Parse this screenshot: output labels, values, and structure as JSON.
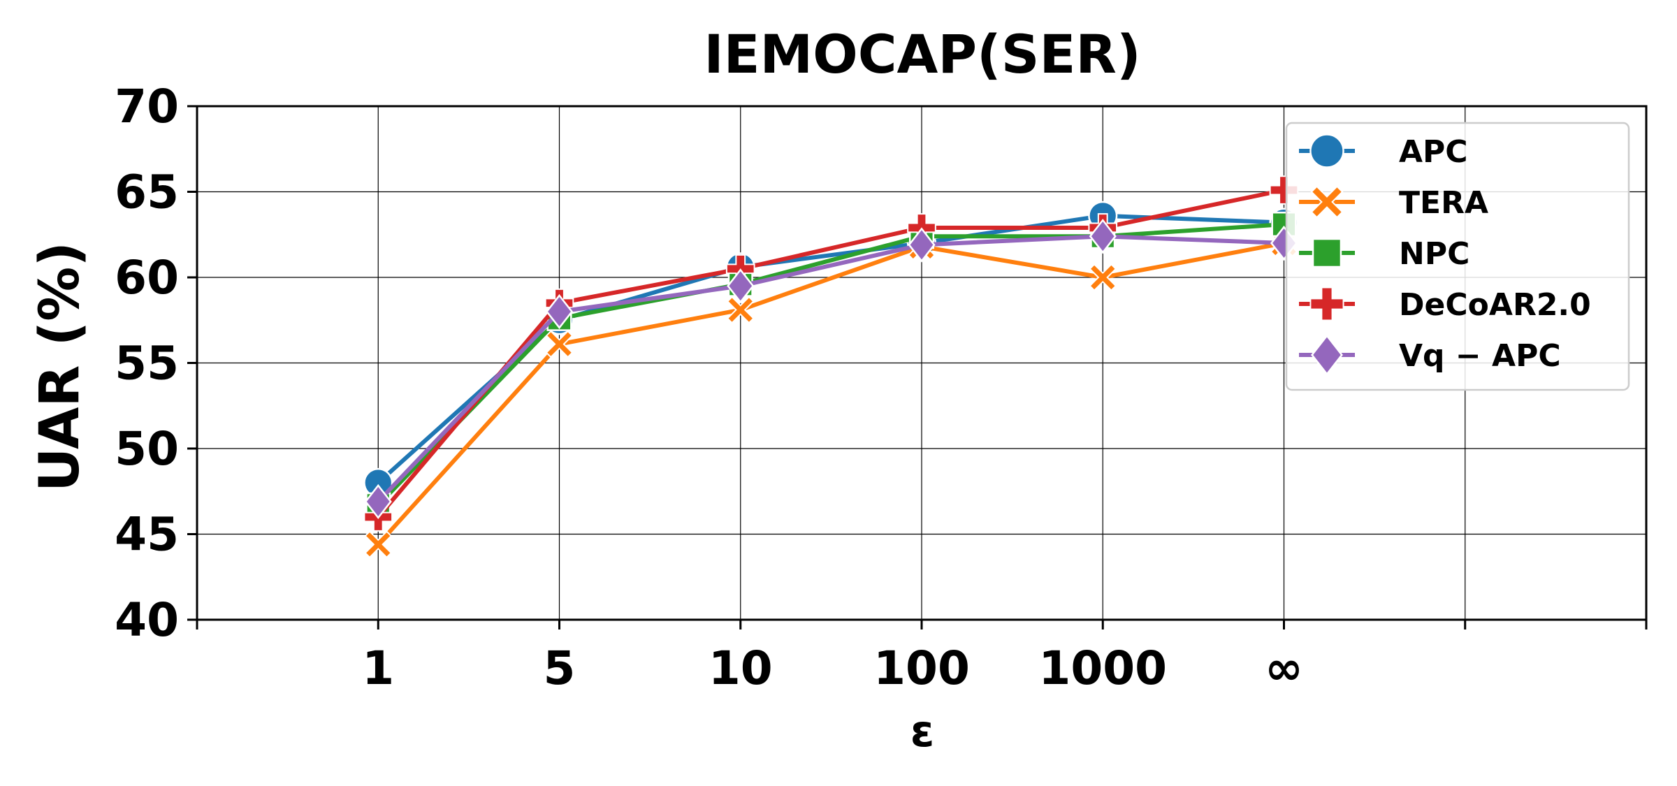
{
  "chart_data": {
    "type": "line",
    "title": "IEMOCAP(SER)",
    "xlabel": "ε",
    "ylabel": "UAR (%)",
    "categories": [
      "1",
      "5",
      "10",
      "100",
      "1000",
      "∞"
    ],
    "x_tick_count": 9,
    "y_ticks": [
      "40",
      "45",
      "50",
      "55",
      "60",
      "65",
      "70"
    ],
    "ylim": [
      40,
      70
    ],
    "grid": true,
    "legend_position": "top-right",
    "series": [
      {
        "name": "APC",
        "color": "#1f77b4",
        "marker": "circle",
        "values": [
          48.0,
          57.5,
          60.6,
          62.0,
          63.6,
          63.2
        ]
      },
      {
        "name": "TERA",
        "color": "#ff7f0e",
        "marker": "x",
        "values": [
          44.4,
          56.1,
          58.1,
          61.8,
          60.0,
          62.0
        ]
      },
      {
        "name": "NPC",
        "color": "#2ca02c",
        "marker": "square",
        "values": [
          46.7,
          57.6,
          59.6,
          62.4,
          62.4,
          63.1
        ]
      },
      {
        "name": "DeCoAR2.0",
        "color": "#d62728",
        "marker": "plus",
        "values": [
          46.0,
          58.5,
          60.5,
          62.9,
          62.9,
          65.1
        ]
      },
      {
        "name": "Vq − APC",
        "color": "#9467bd",
        "marker": "diamond",
        "values": [
          46.9,
          58.0,
          59.5,
          61.9,
          62.4,
          62.0
        ]
      }
    ]
  }
}
